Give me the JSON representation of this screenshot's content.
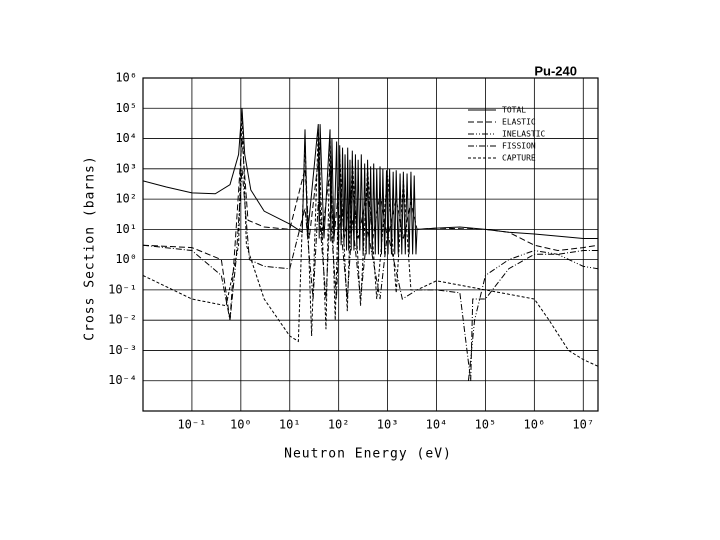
{
  "chart_data": {
    "type": "line",
    "title": "Pu-240",
    "x_label": "Neutron Energy (eV)",
    "y_label": "Cross Section (barns)",
    "log_x": true,
    "log_y": true,
    "grid": true,
    "legend": "upper right",
    "xlim": [
      0.01,
      20000000
    ],
    "ylim": [
      1e-05,
      1000000
    ],
    "xticks": [
      {
        "value": 0.1,
        "label": "10⁻¹"
      },
      {
        "value": 1,
        "label": "10⁰"
      },
      {
        "value": 10,
        "label": "10¹"
      },
      {
        "value": 100,
        "label": "10²"
      },
      {
        "value": 1000,
        "label": "10³"
      },
      {
        "value": 10000,
        "label": "10⁴"
      },
      {
        "value": 100000,
        "label": "10⁵"
      },
      {
        "value": 1000000,
        "label": "10⁶"
      },
      {
        "value": 10000000,
        "label": "10⁷"
      }
    ],
    "yticks": [
      {
        "value": 0.0001,
        "label": "10⁻⁴"
      },
      {
        "value": 0.001,
        "label": "10⁻³"
      },
      {
        "value": 0.01,
        "label": "10⁻²"
      },
      {
        "value": 0.1,
        "label": "10⁻¹"
      },
      {
        "value": 1,
        "label": "10⁰"
      },
      {
        "value": 10,
        "label": "10¹"
      },
      {
        "value": 100,
        "label": "10²"
      },
      {
        "value": 1000,
        "label": "10³"
      },
      {
        "value": 10000,
        "label": "10⁴"
      },
      {
        "value": 100000,
        "label": "10⁵"
      },
      {
        "value": 1000000,
        "label": "10⁶"
      }
    ],
    "series": [
      {
        "name": "TOTAL",
        "color": "#000000",
        "dash": "none",
        "x": [
          0.01,
          0.03,
          0.1,
          0.3,
          0.6,
          0.9,
          1.056,
          1.2,
          1.6,
          3,
          10,
          18,
          20.5,
          23,
          38.3,
          40,
          41.7,
          50,
          66.6,
          69,
          72.8,
          80,
          90.8,
          98,
          105,
          112,
          120,
          128,
          135,
          145,
          153,
          160,
          170,
          180,
          190,
          205,
          220,
          235,
          250,
          270,
          290,
          315,
          340,
          365,
          390,
          420,
          450,
          485,
          520,
          560,
          600,
          650,
          700,
          750,
          800,
          870,
          950,
          1020,
          1100,
          1200,
          1300,
          1400,
          1500,
          1650,
          1800,
          1950,
          2100,
          2300,
          2500,
          2750,
          3000,
          3250,
          3500,
          3800,
          4000,
          10000,
          30000,
          100000,
          300000,
          1000000,
          3000000,
          10000000,
          20000000
        ],
        "values": [
          400,
          250,
          160,
          150,
          300,
          3000,
          100000,
          3000,
          200,
          40,
          15,
          8,
          20000,
          6,
          30000,
          5,
          30000,
          5,
          20000,
          4,
          10000,
          4,
          8000,
          3,
          6000,
          3,
          5000,
          3,
          3000,
          2,
          5000,
          2,
          2000,
          2,
          4000,
          2,
          3000,
          2,
          2000,
          2,
          3000,
          1.5,
          1500,
          1.5,
          2000,
          1.5,
          1200,
          1.5,
          1500,
          1.5,
          1000,
          1.5,
          1200,
          1.5,
          1000,
          1.5,
          900,
          1.5,
          1000,
          1.5,
          800,
          1.5,
          900,
          1.5,
          700,
          1.5,
          800,
          1.5,
          700,
          1.5,
          800,
          1.5,
          600,
          1.5,
          10,
          11,
          12,
          10,
          8,
          7,
          6,
          5,
          5
        ]
      },
      {
        "name": "ELASTIC",
        "color": "#000000",
        "dash": "6 3",
        "x": [
          0.01,
          0.1,
          0.4,
          0.6,
          0.8,
          1.056,
          1.4,
          3,
          10,
          20.5,
          25,
          38.3,
          45,
          66.6,
          80,
          105,
          130,
          190,
          250,
          390,
          500,
          700,
          1000,
          1500,
          2100,
          3000,
          4000,
          10000,
          100000,
          300000,
          1000000,
          3000000,
          10000000,
          20000000
        ],
        "values": [
          3,
          2.5,
          1,
          0.01,
          10,
          10000,
          20,
          12,
          10,
          1000,
          5,
          2000,
          5,
          1000,
          5,
          500,
          5,
          300,
          5,
          200,
          5,
          150,
          5,
          100,
          5,
          80,
          10,
          11,
          10,
          8,
          3,
          2,
          2.5,
          3
        ]
      },
      {
        "name": "INELASTIC",
        "color": "#000000",
        "dash": "6 2 1 2 1 2",
        "x": [
          45000,
          60000,
          100000,
          300000,
          1000000,
          3000000,
          10000000,
          20000000
        ],
        "values": [
          0.0001,
          0.01,
          0.3,
          1,
          2,
          1.5,
          0.6,
          0.5
        ]
      },
      {
        "name": "FISSION",
        "color": "#000000",
        "dash": "6 2 1 2",
        "x": [
          0.01,
          0.1,
          0.4,
          0.6,
          0.8,
          1.056,
          1.5,
          3,
          10,
          20.5,
          30,
          38.3,
          55,
          66.6,
          90,
          105,
          150,
          190,
          280,
          390,
          700,
          1000,
          2000,
          4000,
          10000,
          30000,
          50000,
          55000,
          100000,
          300000,
          1000000,
          3000000,
          10000000,
          20000000
        ],
        "values": [
          3,
          2,
          0.3,
          0.01,
          1,
          1000,
          1,
          0.6,
          0.5,
          50,
          0.05,
          80,
          0.05,
          40,
          0.05,
          30,
          0.05,
          20,
          0.05,
          10,
          0.05,
          8,
          0.05,
          0.1,
          0.1,
          0.08,
          0.0001,
          0.05,
          0.05,
          0.5,
          1.5,
          1.5,
          2,
          2
        ]
      },
      {
        "name": "CAPTURE",
        "color": "#000000",
        "dash": "3 2",
        "x": [
          0.01,
          0.1,
          0.5,
          0.9,
          1.056,
          1.3,
          3,
          10,
          15,
          20.5,
          28,
          38.3,
          55,
          66.6,
          85,
          105,
          150,
          190,
          280,
          390,
          600,
          1000,
          1500,
          2100,
          3000,
          4000,
          10000,
          100000,
          1000000,
          2000000,
          5000000,
          10000000,
          20000000
        ],
        "values": [
          0.3,
          0.05,
          0.03,
          3,
          80000,
          3,
          0.05,
          0.003,
          0.002,
          8000,
          0.003,
          20000,
          0.005,
          10000,
          0.01,
          3000,
          0.02,
          2000,
          0.03,
          1000,
          0.05,
          600,
          0.08,
          400,
          0.1,
          0.1,
          0.2,
          0.1,
          0.05,
          0.01,
          0.001,
          0.0005,
          0.0003
        ]
      }
    ]
  }
}
